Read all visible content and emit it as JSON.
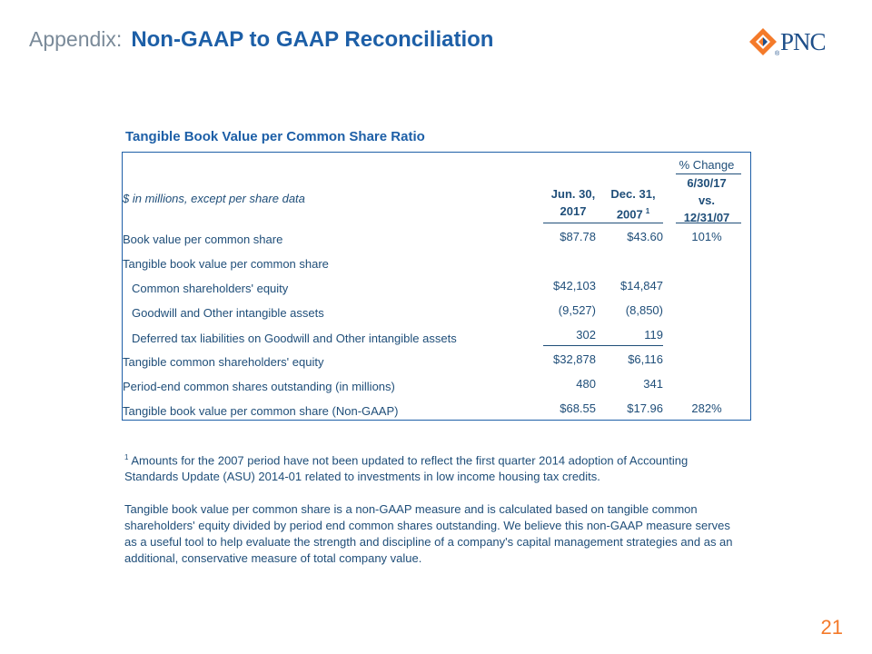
{
  "header": {
    "prefix": "Appendix:",
    "title": "Non-GAAP to GAAP Reconciliation"
  },
  "logo": {
    "text": "PNC",
    "mark": "®",
    "colors": {
      "orange": "#f47a2a",
      "navy": "#1d4e89"
    }
  },
  "table": {
    "title": "Tangible Book Value per Common Share Ratio",
    "unit_label": "$ in millions, except per share data",
    "columns": {
      "col1": {
        "line1": "Jun. 30,",
        "line2": "2017"
      },
      "col2": {
        "line1": "Dec. 31,",
        "line2": "2007",
        "footnote": "1"
      },
      "col3": {
        "top": "% Change",
        "line1": "6/30/17",
        "line2": "vs.",
        "line3": "12/31/07"
      }
    },
    "rows": [
      {
        "label": "Book value per common share",
        "v1": "$87.78",
        "v2": "$43.60",
        "v3": "101%"
      },
      {
        "label": "Tangible book value per common share",
        "v1": "",
        "v2": "",
        "v3": ""
      },
      {
        "label": "Common shareholders' equity",
        "v1": "$42,103",
        "v2": "$14,847",
        "v3": ""
      },
      {
        "label": "Goodwill and Other intangible assets",
        "v1": "(9,527)",
        "v2": "(8,850)",
        "v3": ""
      },
      {
        "label": "Deferred tax liabilities on Goodwill and Other intangible assets",
        "v1": "302",
        "v2": "119",
        "v3": ""
      },
      {
        "label": "Tangible common shareholders' equity",
        "v1": "$32,878",
        "v2": "$6,116",
        "v3": ""
      },
      {
        "label": "Period-end common shares outstanding (in millions)",
        "v1": "480",
        "v2": "341",
        "v3": ""
      },
      {
        "label": "Tangible book value per common share (Non-GAAP)",
        "v1": "$68.55",
        "v2": "$17.96",
        "v3": "282%"
      }
    ]
  },
  "footnote": {
    "marker": "1",
    "text": " Amounts for the 2007 period have not been updated to reflect the first quarter 2014 adoption of Accounting Standards Update (ASU) 2014-01 related to investments in low income housing tax credits."
  },
  "paragraph": "Tangible book value per common share is a non-GAAP measure and is calculated based on tangible common shareholders' equity divided by period end common shares outstanding. We believe this non-GAAP measure serves as a useful tool to help evaluate the strength and discipline of a company's capital management strategies and as an additional, conservative measure of total company value.",
  "page_number": "21"
}
